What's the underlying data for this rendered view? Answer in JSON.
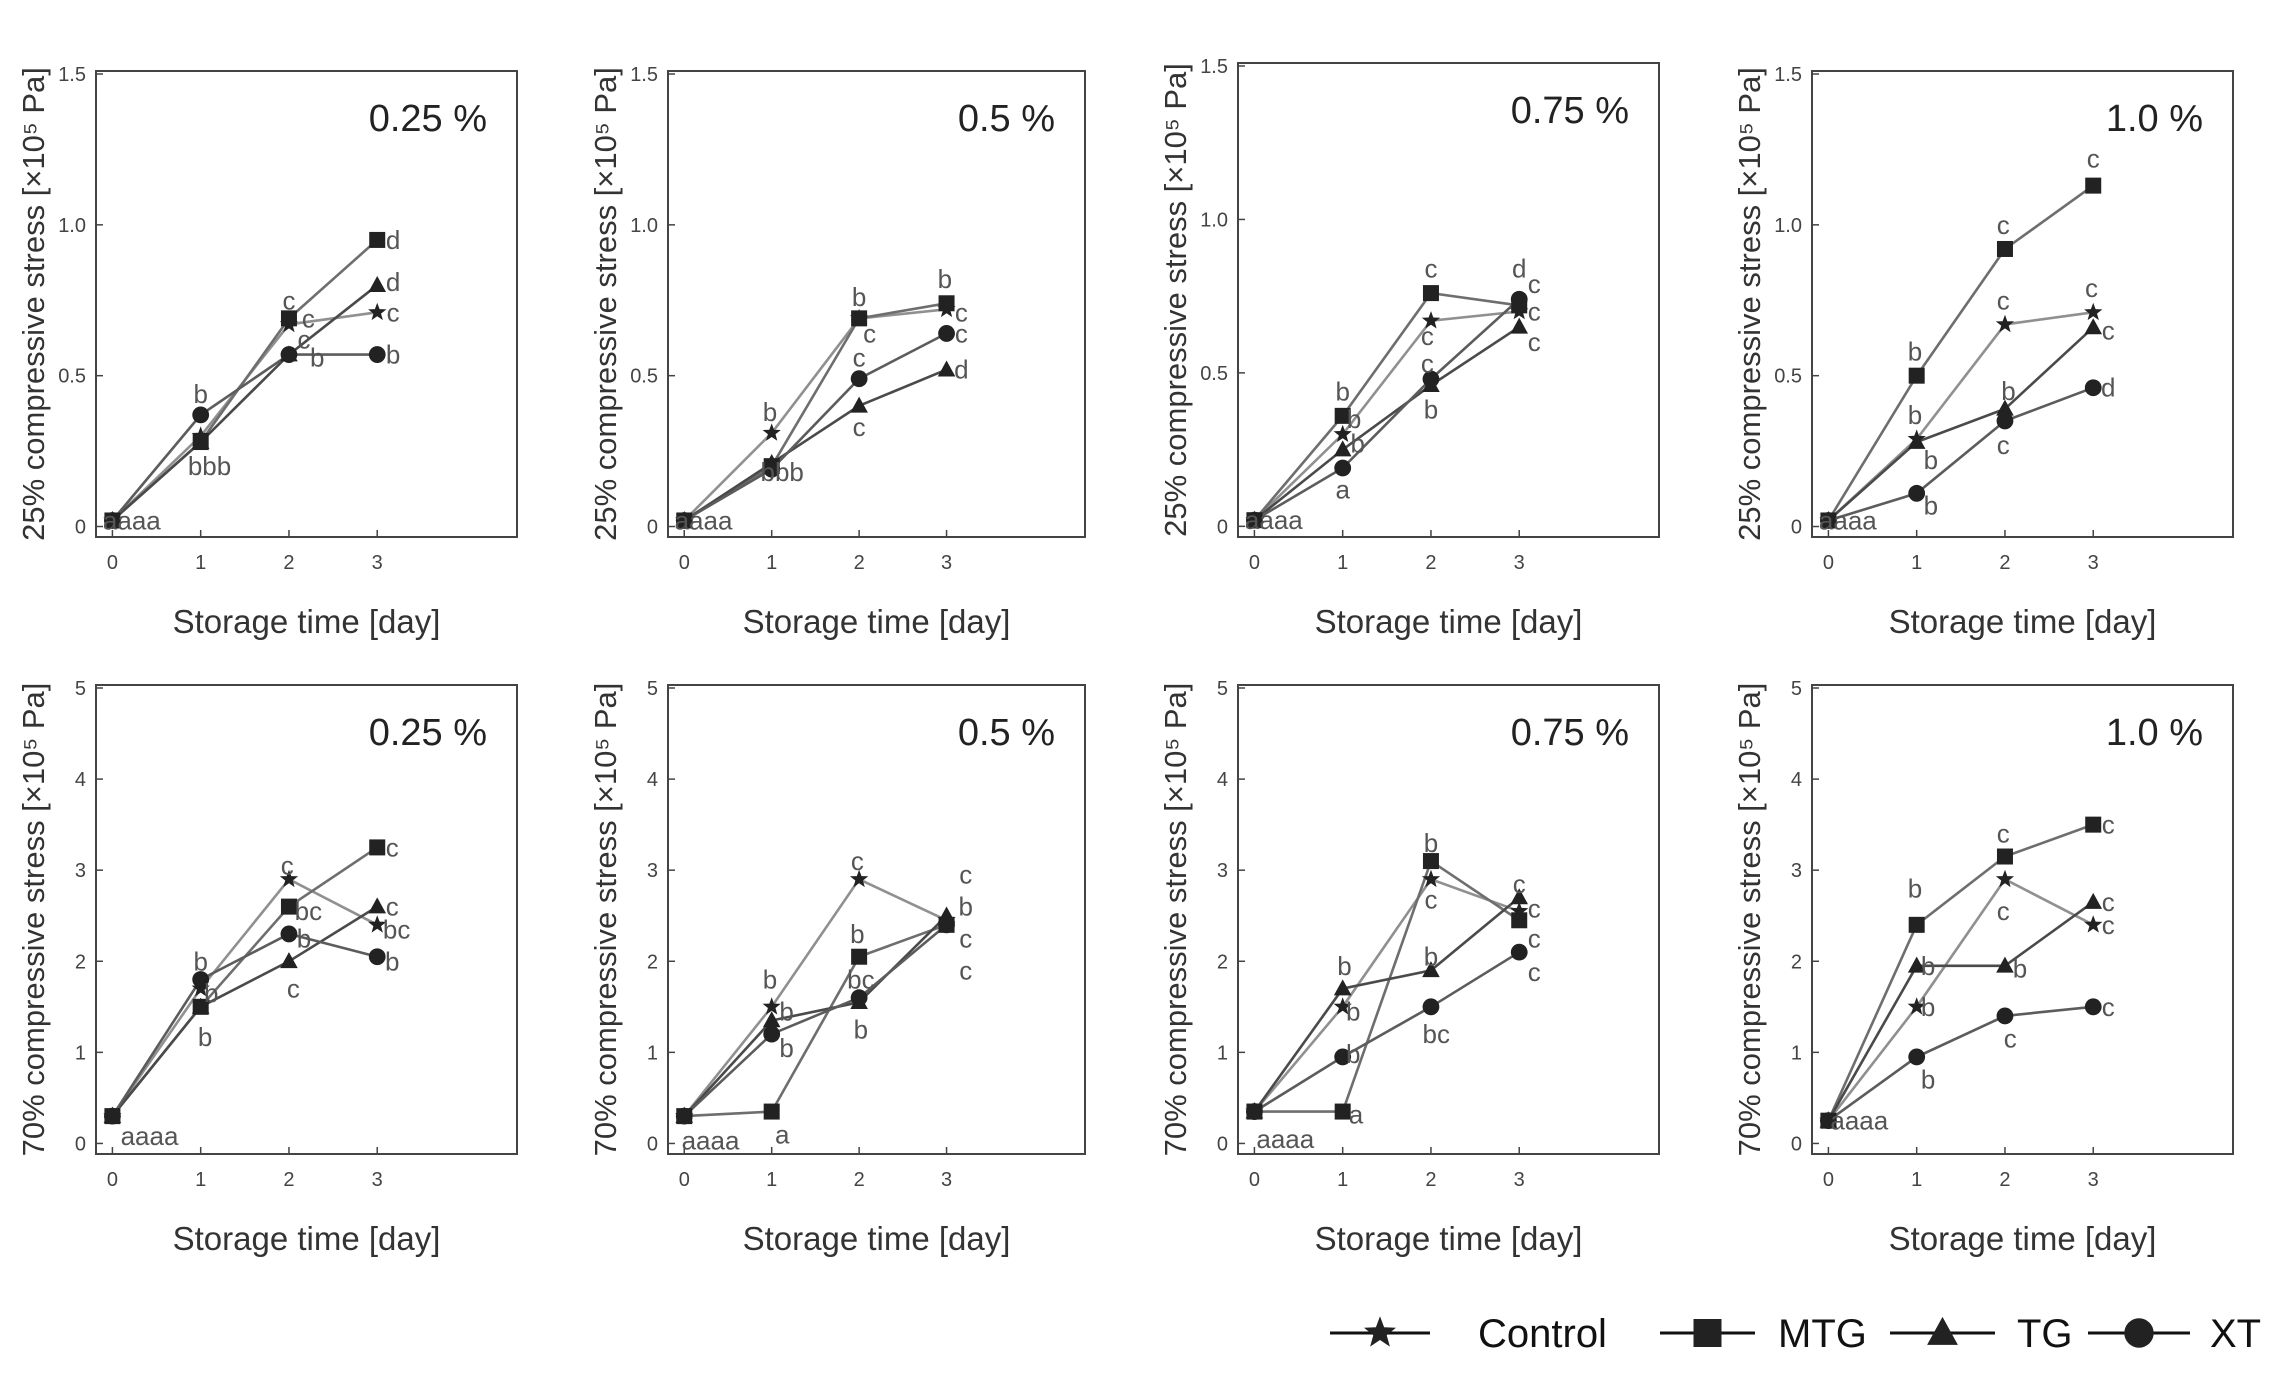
{
  "legend": {
    "entries": [
      {
        "label": "Control",
        "marker": "star"
      },
      {
        "label": "MTG",
        "marker": "square"
      },
      {
        "label": "TG",
        "marker": "triangle"
      },
      {
        "label": "XT",
        "marker": "circle"
      }
    ]
  },
  "chart_data": [
    {
      "type": "line",
      "concentration": "0.25 %",
      "xlabel": "Storage time [day]",
      "ylabel": "25% compressive stress [×10⁵ Pa]",
      "ylim": [
        0,
        1.5
      ],
      "yticks": [
        "0",
        "0.5",
        "1.0",
        "1.5"
      ],
      "xticks": [
        "0",
        "1",
        "2",
        "3"
      ],
      "x": [
        0,
        1,
        2,
        3
      ],
      "series": [
        {
          "name": "Control",
          "marker": "star",
          "values": [
            0.02,
            0.3,
            0.67,
            0.71
          ]
        },
        {
          "name": "MTG",
          "marker": "square",
          "values": [
            0.02,
            0.28,
            0.69,
            0.95
          ]
        },
        {
          "name": "TG",
          "marker": "triangle",
          "values": [
            0.02,
            0.28,
            0.57,
            0.8
          ]
        },
        {
          "name": "XT",
          "marker": "circle",
          "values": [
            0.02,
            0.37,
            0.57,
            0.57
          ]
        }
      ],
      "annotations": [
        {
          "text": "aaaa",
          "x": 0.22,
          "y": 0.02
        },
        {
          "text": "b",
          "x": 1.0,
          "y": 0.44
        },
        {
          "text": "bbb",
          "x": 1.1,
          "y": 0.2
        },
        {
          "text": "c",
          "x": 2.0,
          "y": 0.75
        },
        {
          "text": "c",
          "x": 2.22,
          "y": 0.69
        },
        {
          "text": "c",
          "x": 2.17,
          "y": 0.62
        },
        {
          "text": "b",
          "x": 2.32,
          "y": 0.56
        },
        {
          "text": "d",
          "x": 3.18,
          "y": 0.95
        },
        {
          "text": "d",
          "x": 3.18,
          "y": 0.81
        },
        {
          "text": "c",
          "x": 3.18,
          "y": 0.71
        },
        {
          "text": "b",
          "x": 3.18,
          "y": 0.57
        }
      ]
    },
    {
      "type": "line",
      "concentration": "0.5 %",
      "xlabel": "Storage time [day]",
      "ylabel": "25% compressive stress [×10⁵ Pa]",
      "ylim": [
        0,
        1.5
      ],
      "yticks": [
        "0",
        "0.5",
        "1.0",
        "1.5"
      ],
      "xticks": [
        "0",
        "1",
        "2",
        "3"
      ],
      "x": [
        0,
        1,
        2,
        3
      ],
      "series": [
        {
          "name": "Control",
          "marker": "star",
          "values": [
            0.02,
            0.31,
            0.69,
            0.72
          ]
        },
        {
          "name": "MTG",
          "marker": "square",
          "values": [
            0.02,
            0.2,
            0.69,
            0.74
          ]
        },
        {
          "name": "TG",
          "marker": "triangle",
          "values": [
            0.02,
            0.21,
            0.4,
            0.52
          ]
        },
        {
          "name": "XT",
          "marker": "circle",
          "values": [
            0.02,
            0.19,
            0.49,
            0.64
          ]
        }
      ],
      "annotations": [
        {
          "text": "aaaa",
          "x": 0.22,
          "y": 0.02
        },
        {
          "text": "b",
          "x": 0.98,
          "y": 0.38
        },
        {
          "text": "bbb",
          "x": 1.12,
          "y": 0.18
        },
        {
          "text": "b",
          "x": 2.0,
          "y": 0.76
        },
        {
          "text": "c",
          "x": 2.12,
          "y": 0.64
        },
        {
          "text": "c",
          "x": 2.0,
          "y": 0.56
        },
        {
          "text": "c",
          "x": 2.0,
          "y": 0.33
        },
        {
          "text": "b",
          "x": 2.98,
          "y": 0.82
        },
        {
          "text": "c",
          "x": 3.17,
          "y": 0.71
        },
        {
          "text": "c",
          "x": 3.17,
          "y": 0.64
        },
        {
          "text": "d",
          "x": 3.17,
          "y": 0.52
        }
      ]
    },
    {
      "type": "line",
      "concentration": "0.75 %",
      "xlabel": "Storage time [day]",
      "ylabel": "25% compressive stress [×10⁵ Pa]",
      "ylim": [
        0,
        1.5
      ],
      "yticks": [
        "0",
        "0.5",
        "1.0",
        "1.5"
      ],
      "xticks": [
        "0",
        "1",
        "2",
        "3"
      ],
      "x": [
        0,
        1,
        2,
        3
      ],
      "series": [
        {
          "name": "Control",
          "marker": "star",
          "values": [
            0.02,
            0.3,
            0.67,
            0.7
          ]
        },
        {
          "name": "MTG",
          "marker": "square",
          "values": [
            0.02,
            0.36,
            0.76,
            0.72
          ]
        },
        {
          "name": "TG",
          "marker": "triangle",
          "values": [
            0.02,
            0.25,
            0.46,
            0.65
          ]
        },
        {
          "name": "XT",
          "marker": "circle",
          "values": [
            0.02,
            0.19,
            0.48,
            0.74
          ]
        }
      ],
      "annotations": [
        {
          "text": "aaaa",
          "x": 0.22,
          "y": 0.02
        },
        {
          "text": "b",
          "x": 1.0,
          "y": 0.44
        },
        {
          "text": "b",
          "x": 1.13,
          "y": 0.35
        },
        {
          "text": "b",
          "x": 1.17,
          "y": 0.27
        },
        {
          "text": "a",
          "x": 1.0,
          "y": 0.12
        },
        {
          "text": "c",
          "x": 2.0,
          "y": 0.84
        },
        {
          "text": "c",
          "x": 1.96,
          "y": 0.62
        },
        {
          "text": "c",
          "x": 1.96,
          "y": 0.53
        },
        {
          "text": "b",
          "x": 2.0,
          "y": 0.38
        },
        {
          "text": "d",
          "x": 3.0,
          "y": 0.84
        },
        {
          "text": "c",
          "x": 3.17,
          "y": 0.79
        },
        {
          "text": "c",
          "x": 3.17,
          "y": 0.7
        },
        {
          "text": "c",
          "x": 3.17,
          "y": 0.6
        }
      ]
    },
    {
      "type": "line",
      "concentration": "1.0 %",
      "xlabel": "Storage time [day]",
      "ylabel": "25% compressive stress [×10⁵ Pa]",
      "ylim": [
        0,
        1.5
      ],
      "yticks": [
        "0",
        "0.5",
        "1.0",
        "1.5"
      ],
      "xticks": [
        "0",
        "1",
        "2",
        "3"
      ],
      "x": [
        0,
        1,
        2,
        3
      ],
      "series": [
        {
          "name": "Control",
          "marker": "star",
          "values": [
            0.02,
            0.29,
            0.67,
            0.71
          ]
        },
        {
          "name": "MTG",
          "marker": "square",
          "values": [
            0.02,
            0.5,
            0.92,
            1.13
          ]
        },
        {
          "name": "TG",
          "marker": "triangle",
          "values": [
            0.02,
            0.28,
            0.39,
            0.66
          ]
        },
        {
          "name": "XT",
          "marker": "circle",
          "values": [
            0.02,
            0.11,
            0.35,
            0.46
          ]
        }
      ],
      "annotations": [
        {
          "text": "aaaa",
          "x": 0.22,
          "y": 0.02
        },
        {
          "text": "b",
          "x": 0.98,
          "y": 0.58
        },
        {
          "text": "b",
          "x": 0.98,
          "y": 0.37
        },
        {
          "text": "b",
          "x": 1.16,
          "y": 0.22
        },
        {
          "text": "b",
          "x": 1.16,
          "y": 0.07
        },
        {
          "text": "c",
          "x": 1.98,
          "y": 1.0
        },
        {
          "text": "c",
          "x": 1.98,
          "y": 0.75
        },
        {
          "text": "b",
          "x": 2.04,
          "y": 0.45
        },
        {
          "text": "c",
          "x": 1.98,
          "y": 0.27
        },
        {
          "text": "c",
          "x": 3.0,
          "y": 1.22
        },
        {
          "text": "c",
          "x": 2.98,
          "y": 0.79
        },
        {
          "text": "c",
          "x": 3.17,
          "y": 0.65
        },
        {
          "text": "d",
          "x": 3.17,
          "y": 0.46
        }
      ]
    },
    {
      "type": "line",
      "concentration": "0.25 %",
      "xlabel": "Storage time [day]",
      "ylabel": "70% compressive stress [×10⁵ Pa]",
      "ylim": [
        0,
        5
      ],
      "yticks": [
        "0",
        "1",
        "2",
        "3",
        "4",
        "5"
      ],
      "xticks": [
        "0",
        "1",
        "2",
        "3"
      ],
      "x": [
        0,
        1,
        2,
        3
      ],
      "series": [
        {
          "name": "Control",
          "marker": "star",
          "values": [
            0.3,
            1.7,
            2.9,
            2.4
          ]
        },
        {
          "name": "MTG",
          "marker": "square",
          "values": [
            0.3,
            1.5,
            2.6,
            3.25
          ]
        },
        {
          "name": "TG",
          "marker": "triangle",
          "values": [
            0.3,
            1.5,
            2.0,
            2.6
          ]
        },
        {
          "name": "XT",
          "marker": "circle",
          "values": [
            0.3,
            1.8,
            2.3,
            2.05
          ]
        }
      ],
      "annotations": [
        {
          "text": "aaaa",
          "x": 0.42,
          "y": 0.08
        },
        {
          "text": "b",
          "x": 1.0,
          "y": 2.0
        },
        {
          "text": "b",
          "x": 1.12,
          "y": 1.65
        },
        {
          "text": "b",
          "x": 1.05,
          "y": 1.17
        },
        {
          "text": "c",
          "x": 1.98,
          "y": 3.05
        },
        {
          "text": "bc",
          "x": 2.22,
          "y": 2.55
        },
        {
          "text": "b",
          "x": 2.17,
          "y": 2.25
        },
        {
          "text": "c",
          "x": 2.05,
          "y": 1.7
        },
        {
          "text": "c",
          "x": 3.17,
          "y": 3.25
        },
        {
          "text": "c",
          "x": 3.17,
          "y": 2.6
        },
        {
          "text": "bc",
          "x": 3.22,
          "y": 2.35
        },
        {
          "text": "b",
          "x": 3.17,
          "y": 2.0
        }
      ]
    },
    {
      "type": "line",
      "concentration": "0.5 %",
      "xlabel": "Storage time [day]",
      "ylabel": "70% compressive stress [×10⁵ Pa]",
      "ylim": [
        0,
        5
      ],
      "yticks": [
        "0",
        "1",
        "2",
        "3",
        "4",
        "5"
      ],
      "xticks": [
        "0",
        "1",
        "2",
        "3"
      ],
      "x": [
        0,
        1,
        2,
        3
      ],
      "series": [
        {
          "name": "Control",
          "marker": "star",
          "values": [
            0.3,
            1.5,
            2.9,
            2.45
          ]
        },
        {
          "name": "MTG",
          "marker": "square",
          "values": [
            0.3,
            0.35,
            2.05,
            2.4
          ]
        },
        {
          "name": "TG",
          "marker": "triangle",
          "values": [
            0.3,
            1.35,
            1.55,
            2.5
          ]
        },
        {
          "name": "XT",
          "marker": "circle",
          "values": [
            0.3,
            1.2,
            1.6,
            2.4
          ]
        }
      ],
      "annotations": [
        {
          "text": "aaaa",
          "x": 0.3,
          "y": 0.03
        },
        {
          "text": "b",
          "x": 0.98,
          "y": 1.8
        },
        {
          "text": "b",
          "x": 1.17,
          "y": 1.45
        },
        {
          "text": "b",
          "x": 1.17,
          "y": 1.05
        },
        {
          "text": "a",
          "x": 1.12,
          "y": 0.1
        },
        {
          "text": "c",
          "x": 1.98,
          "y": 3.1
        },
        {
          "text": "b",
          "x": 1.98,
          "y": 2.3
        },
        {
          "text": "bc",
          "x": 2.02,
          "y": 1.8
        },
        {
          "text": "b",
          "x": 2.02,
          "y": 1.25
        },
        {
          "text": "c",
          "x": 3.22,
          "y": 2.95
        },
        {
          "text": "b",
          "x": 3.22,
          "y": 2.6
        },
        {
          "text": "c",
          "x": 3.22,
          "y": 2.25
        },
        {
          "text": "c",
          "x": 3.22,
          "y": 1.9
        }
      ]
    },
    {
      "type": "line",
      "concentration": "0.75 %",
      "xlabel": "Storage time [day]",
      "ylabel": "70% compressive stress [×10⁵ Pa]",
      "ylim": [
        0,
        5
      ],
      "yticks": [
        "0",
        "1",
        "2",
        "3",
        "4",
        "5"
      ],
      "xticks": [
        "0",
        "1",
        "2",
        "3"
      ],
      "x": [
        0,
        1,
        2,
        3
      ],
      "series": [
        {
          "name": "Control",
          "marker": "star",
          "values": [
            0.35,
            1.5,
            2.9,
            2.55
          ]
        },
        {
          "name": "MTG",
          "marker": "square",
          "values": [
            0.35,
            0.35,
            3.1,
            2.45
          ]
        },
        {
          "name": "TG",
          "marker": "triangle",
          "values": [
            0.35,
            1.7,
            1.9,
            2.7
          ]
        },
        {
          "name": "XT",
          "marker": "circle",
          "values": [
            0.35,
            0.95,
            1.5,
            2.1
          ]
        }
      ],
      "annotations": [
        {
          "text": "aaaa",
          "x": 0.35,
          "y": 0.05
        },
        {
          "text": "b",
          "x": 1.02,
          "y": 1.95
        },
        {
          "text": "b",
          "x": 1.12,
          "y": 1.45
        },
        {
          "text": "b",
          "x": 1.12,
          "y": 0.98
        },
        {
          "text": "a",
          "x": 1.15,
          "y": 0.32
        },
        {
          "text": "b",
          "x": 2.0,
          "y": 3.3
        },
        {
          "text": "c",
          "x": 2.0,
          "y": 2.68
        },
        {
          "text": "b",
          "x": 2.0,
          "y": 2.05
        },
        {
          "text": "bc",
          "x": 2.06,
          "y": 1.2
        },
        {
          "text": "c",
          "x": 3.0,
          "y": 2.85
        },
        {
          "text": "c",
          "x": 3.17,
          "y": 2.58
        },
        {
          "text": "c",
          "x": 3.17,
          "y": 2.25
        },
        {
          "text": "c",
          "x": 3.17,
          "y": 1.88
        }
      ]
    },
    {
      "type": "line",
      "concentration": "1.0 %",
      "xlabel": "Storage time [day]",
      "ylabel": "70% compressive stress [×10⁵ Pa]",
      "ylim": [
        0,
        5
      ],
      "yticks": [
        "0",
        "1",
        "2",
        "3",
        "4",
        "5"
      ],
      "xticks": [
        "0",
        "1",
        "2",
        "3"
      ],
      "x": [
        0,
        1,
        2,
        3
      ],
      "series": [
        {
          "name": "Control",
          "marker": "star",
          "values": [
            0.25,
            1.5,
            2.9,
            2.4
          ]
        },
        {
          "name": "MTG",
          "marker": "square",
          "values": [
            0.25,
            2.4,
            3.15,
            3.5
          ]
        },
        {
          "name": "TG",
          "marker": "triangle",
          "values": [
            0.25,
            1.95,
            1.95,
            2.65
          ]
        },
        {
          "name": "XT",
          "marker": "circle",
          "values": [
            0.25,
            0.95,
            1.4,
            1.5
          ]
        }
      ],
      "annotations": [
        {
          "text": "aaaa",
          "x": 0.35,
          "y": 0.25
        },
        {
          "text": "b",
          "x": 0.98,
          "y": 2.8
        },
        {
          "text": "b",
          "x": 1.13,
          "y": 1.95
        },
        {
          "text": "b",
          "x": 1.13,
          "y": 1.5
        },
        {
          "text": "b",
          "x": 1.13,
          "y": 0.7
        },
        {
          "text": "c",
          "x": 1.98,
          "y": 3.4
        },
        {
          "text": "c",
          "x": 1.98,
          "y": 2.55
        },
        {
          "text": "b",
          "x": 2.17,
          "y": 1.92
        },
        {
          "text": "c",
          "x": 2.06,
          "y": 1.15
        },
        {
          "text": "c",
          "x": 3.17,
          "y": 3.5
        },
        {
          "text": "c",
          "x": 3.17,
          "y": 2.65
        },
        {
          "text": "c",
          "x": 3.17,
          "y": 2.4
        },
        {
          "text": "c",
          "x": 3.17,
          "y": 1.5
        }
      ]
    }
  ]
}
